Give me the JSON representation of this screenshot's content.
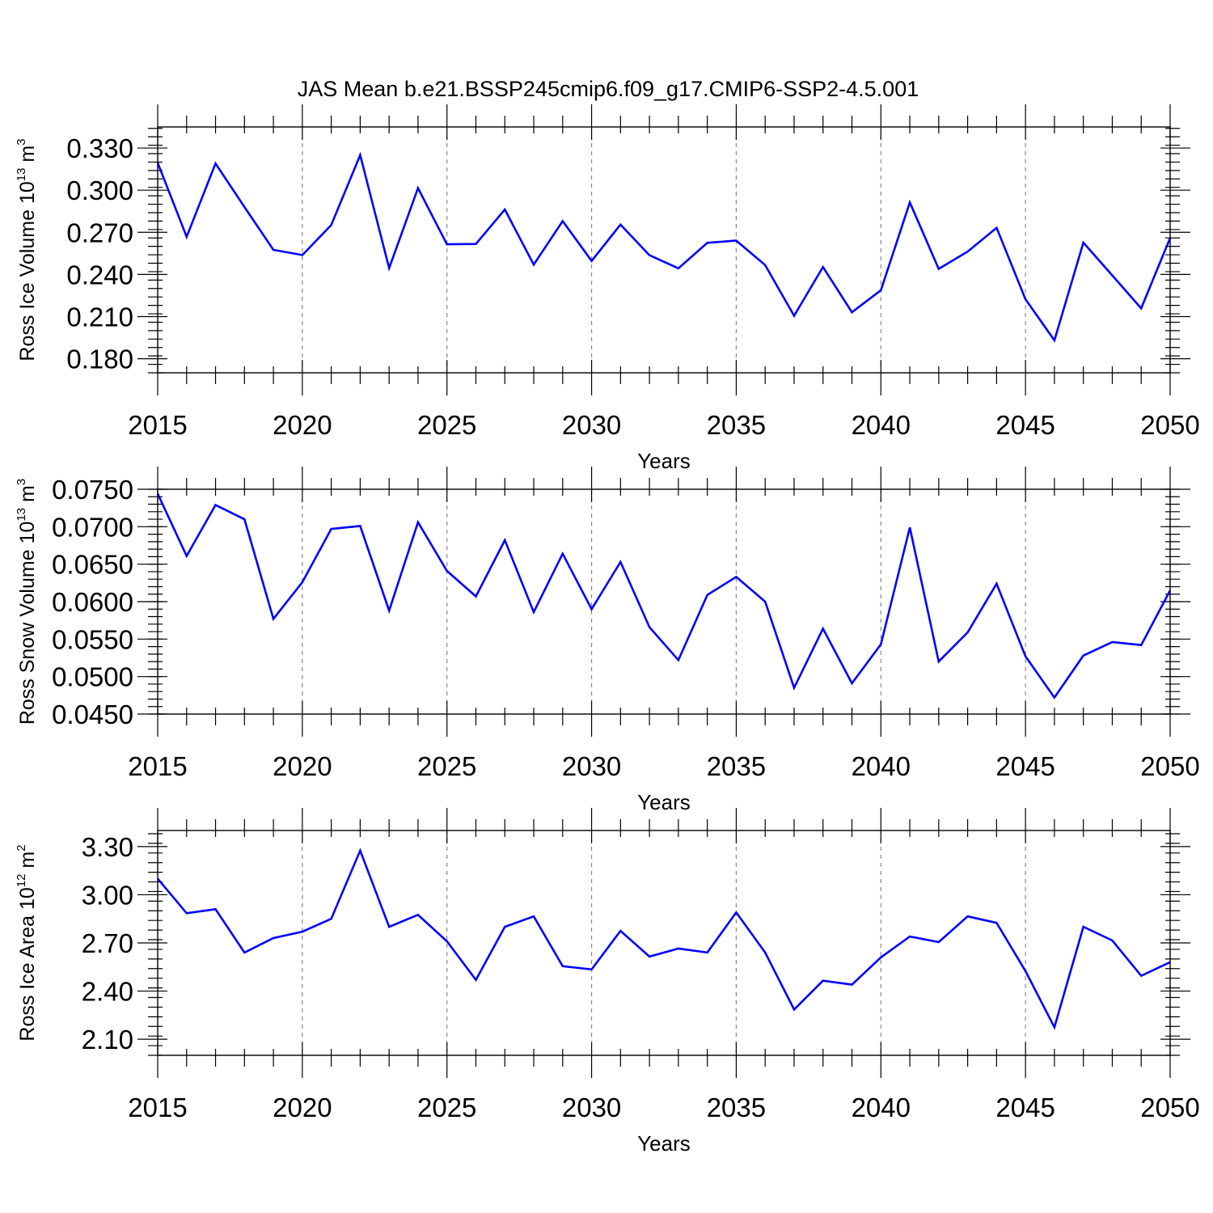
{
  "figure": {
    "title": "JAS Mean b.e21.BSSP245cmip6.f09_g17.CMIP6-SSP2-4.5.001"
  },
  "chart_data": [
    {
      "type": "line",
      "xlabel": "Years",
      "ylabel": {
        "main": "Ross Ice Volume 10",
        "exp": "13",
        "unit": " m",
        "unit_exp": "3"
      },
      "xlim": [
        2015,
        2050
      ],
      "ylim": [
        0.17,
        0.345
      ],
      "xticks": [
        2015,
        2020,
        2025,
        2030,
        2035,
        2040,
        2045,
        2050
      ],
      "yticks": [
        0.18,
        0.21,
        0.24,
        0.27,
        0.3,
        0.33
      ],
      "ytick_labels": [
        "0.180",
        "0.210",
        "0.240",
        "0.270",
        "0.300",
        "0.330"
      ],
      "y_minor_step": 0.006,
      "x": [
        2015,
        2016,
        2017,
        2018,
        2019,
        2020,
        2021,
        2022,
        2023,
        2024,
        2025,
        2026,
        2027,
        2028,
        2029,
        2030,
        2031,
        2032,
        2033,
        2034,
        2035,
        2036,
        2037,
        2038,
        2039,
        2040,
        2041,
        2042,
        2043,
        2044,
        2045,
        2046,
        2047,
        2048,
        2049,
        2050
      ],
      "series": [
        {
          "name": "Ross Ice Volume",
          "color": "#0000ff",
          "values": [
            0.3195,
            0.2668,
            0.319,
            0.288,
            0.2575,
            0.2538,
            0.2752,
            0.325,
            0.2445,
            0.3015,
            0.2615,
            0.2617,
            0.2862,
            0.247,
            0.278,
            0.2496,
            0.2755,
            0.2537,
            0.2444,
            0.2625,
            0.2641,
            0.2467,
            0.2106,
            0.2453,
            0.2131,
            0.2288,
            0.2913,
            0.244,
            0.2563,
            0.2732,
            0.2224,
            0.1931,
            0.2627,
            0.2393,
            0.2159,
            0.266
          ]
        }
      ]
    },
    {
      "type": "line",
      "xlabel": "Years",
      "ylabel": {
        "main": "Ross Snow Volume 10",
        "exp": "13",
        "unit": " m",
        "unit_exp": "3"
      },
      "xlim": [
        2015,
        2050
      ],
      "ylim": [
        0.045,
        0.075
      ],
      "xticks": [
        2015,
        2020,
        2025,
        2030,
        2035,
        2040,
        2045,
        2050
      ],
      "yticks": [
        0.045,
        0.05,
        0.055,
        0.06,
        0.065,
        0.07,
        0.075
      ],
      "ytick_labels": [
        "0.0450",
        "0.0500",
        "0.0550",
        "0.0600",
        "0.0650",
        "0.0700",
        "0.0750"
      ],
      "y_minor_step": 0.001,
      "x": [
        2015,
        2016,
        2017,
        2018,
        2019,
        2020,
        2021,
        2022,
        2023,
        2024,
        2025,
        2026,
        2027,
        2028,
        2029,
        2030,
        2031,
        2032,
        2033,
        2034,
        2035,
        2036,
        2037,
        2038,
        2039,
        2040,
        2041,
        2042,
        2043,
        2044,
        2045,
        2046,
        2047,
        2048,
        2049,
        2050
      ],
      "series": [
        {
          "name": "Ross Snow Volume",
          "color": "#0000ff",
          "values": [
            0.0744,
            0.0661,
            0.0729,
            0.071,
            0.0577,
            0.0626,
            0.0697,
            0.0701,
            0.0588,
            0.0706,
            0.0641,
            0.0607,
            0.0682,
            0.0586,
            0.0664,
            0.059,
            0.0653,
            0.0566,
            0.0522,
            0.0609,
            0.0633,
            0.06,
            0.0485,
            0.0564,
            0.0491,
            0.0543,
            0.0699,
            0.052,
            0.0559,
            0.0624,
            0.0527,
            0.0472,
            0.0528,
            0.0546,
            0.0542,
            0.0615
          ]
        }
      ]
    },
    {
      "type": "line",
      "xlabel": "Years",
      "ylabel": {
        "main": "Ross Ice Area 10",
        "exp": "12",
        "unit": " m",
        "unit_exp": "2"
      },
      "xlim": [
        2015,
        2050
      ],
      "ylim": [
        2.0,
        3.4
      ],
      "xticks": [
        2015,
        2020,
        2025,
        2030,
        2035,
        2040,
        2045,
        2050
      ],
      "yticks": [
        2.1,
        2.4,
        2.7,
        3.0,
        3.3
      ],
      "ytick_labels": [
        "2.10",
        "2.40",
        "2.70",
        "3.00",
        "3.30"
      ],
      "y_minor_step": 0.06,
      "x": [
        2015,
        2016,
        2017,
        2018,
        2019,
        2020,
        2021,
        2022,
        2023,
        2024,
        2025,
        2026,
        2027,
        2028,
        2029,
        2030,
        2031,
        2032,
        2033,
        2034,
        2035,
        2036,
        2037,
        2038,
        2039,
        2040,
        2041,
        2042,
        2043,
        2044,
        2045,
        2046,
        2047,
        2048,
        2049,
        2050
      ],
      "series": [
        {
          "name": "Ross Ice Area",
          "color": "#0000ff",
          "values": [
            3.1,
            2.885,
            2.91,
            2.64,
            2.73,
            2.77,
            2.85,
            3.275,
            2.8,
            2.875,
            2.71,
            2.47,
            2.8,
            2.865,
            2.555,
            2.535,
            2.775,
            2.615,
            2.665,
            2.64,
            2.89,
            2.64,
            2.285,
            2.465,
            2.44,
            2.61,
            2.74,
            2.705,
            2.865,
            2.825,
            2.525,
            2.175,
            2.8,
            2.715,
            2.495,
            2.58
          ]
        }
      ]
    }
  ]
}
